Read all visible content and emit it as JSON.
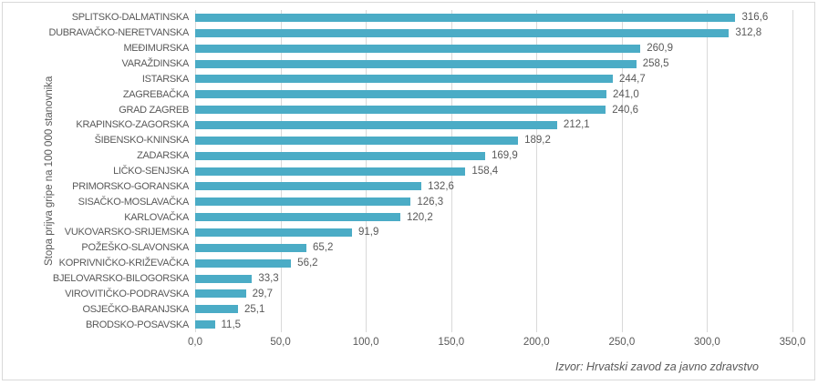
{
  "chart_data": {
    "type": "bar",
    "orientation": "horizontal",
    "title": "",
    "xlabel": "",
    "ylabel": "Stopa prijva gripe na 100 000 stanovnika",
    "source_note": "Izvor: Hrvatski zavod za javno zdravstvo",
    "xlim": [
      0,
      350
    ],
    "x_ticks": [
      0,
      50,
      100,
      150,
      200,
      250,
      300,
      350
    ],
    "x_tick_labels": [
      "0,0",
      "50,0",
      "100,0",
      "150,0",
      "200,0",
      "250,0",
      "300,0",
      "350,0"
    ],
    "grid": "vertical-gridlines-on",
    "legend": "none",
    "categories": [
      "SPLITSKO-DALMATINSKA",
      "DUBRAVAČKO-NERETVANSKA",
      "MEĐIMURSKA",
      "VARAŽDINSKA",
      "ISTARSKA",
      "ZAGREBAČKA",
      "GRAD ZAGREB",
      "KRAPINSKO-ZAGORSKA",
      "ŠIBENSKO-KNINSKA",
      "ZADARSKA",
      "LIČKO-SENJSKA",
      "PRIMORSKO-GORANSKA",
      "SISAČKO-MOSLAVAČKA",
      "KARLOVAČKA",
      "VUKOVARSKO-SRIJEMSKA",
      "POŽEŠKO-SLAVONSKA",
      "KOPRIVNIČKO-KRIŽEVAČKA",
      "BJELOVARSKO-BILOGORSKA",
      "VIROVITIČKO-PODRAVSKA",
      "OSJEČKO-BARANJSKA",
      "BRODSKO-POSAVSKA"
    ],
    "values": [
      316.6,
      312.8,
      260.9,
      258.5,
      244.7,
      241.0,
      240.6,
      212.1,
      189.2,
      169.9,
      158.4,
      132.6,
      126.3,
      120.2,
      91.9,
      65.2,
      56.2,
      33.3,
      29.7,
      25.1,
      11.5
    ],
    "value_labels": [
      "316,6",
      "312,8",
      "260,9",
      "258,5",
      "244,7",
      "241,0",
      "240,6",
      "212,1",
      "189,2",
      "169,9",
      "158,4",
      "132,6",
      "126,3",
      "120,2",
      "91,9",
      "65,2",
      "56,2",
      "33,3",
      "29,7",
      "25,1",
      "11,5"
    ],
    "colors": {
      "bar": "#4BACC6",
      "gridline": "#D9D9D9",
      "text": "#595959",
      "frame_border": "#D9D9D9",
      "background": "#FFFFFF"
    }
  }
}
